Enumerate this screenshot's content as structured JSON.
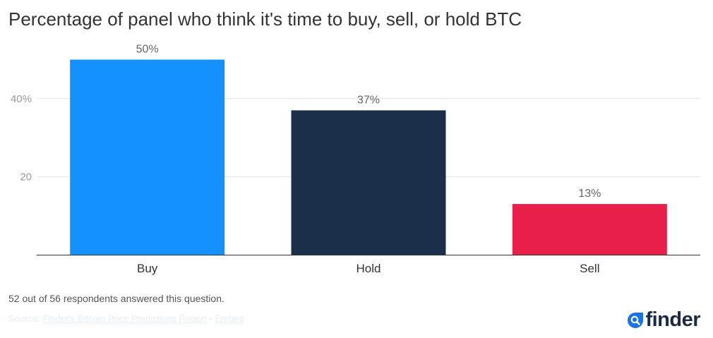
{
  "title": "Percentage of panel who think it's time to buy, sell, or hold BTC",
  "note": "52 out of 56 respondents answered this question.",
  "source": {
    "prefix": "Source:",
    "link_label": "Finder's Bitcoin Price Predictions Report",
    "separator": "•",
    "embed_label": "Embed"
  },
  "brand": {
    "name": "finder",
    "icon": "magnifier-icon",
    "color": "#1b2a45",
    "accent": "#1a73e8"
  },
  "chart_data": {
    "type": "bar",
    "categories": [
      "Buy",
      "Hold",
      "Sell"
    ],
    "values": [
      50,
      37,
      13
    ],
    "data_labels": [
      "50%",
      "37%",
      "13%"
    ],
    "colors": [
      "#1490ff",
      "#1b2f4b",
      "#e81e4b"
    ],
    "yticks": [
      20,
      40
    ],
    "ytick_labels": [
      "20",
      "40%"
    ],
    "ylim": [
      0,
      54
    ],
    "grid": true,
    "title": "Percentage of panel who think it's time to buy, sell, or hold BTC",
    "xlabel": "",
    "ylabel": ""
  }
}
